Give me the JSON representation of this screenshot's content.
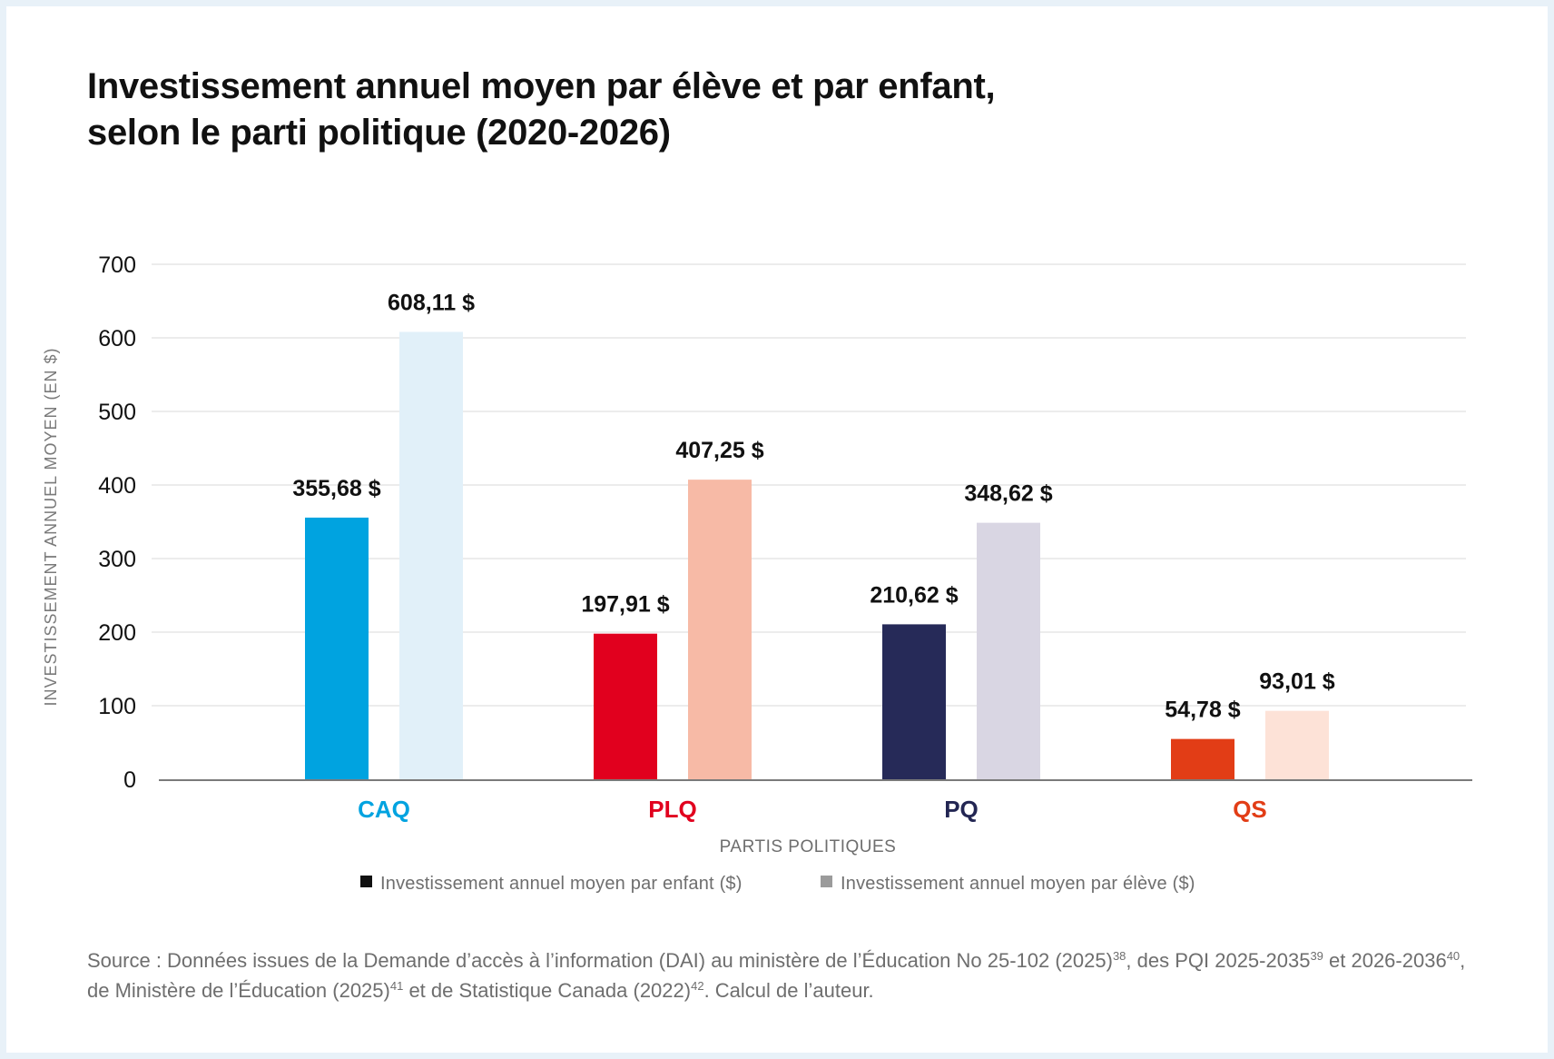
{
  "title_lines": [
    "Investissement annuel moyen par élève et par enfant,",
    "selon le parti politique (2020-2026)"
  ],
  "chart_data": {
    "type": "bar",
    "categories": [
      "CAQ",
      "PLQ",
      "PQ",
      "QS"
    ],
    "category_colors": [
      "#00a3e0",
      "#e1001e",
      "#232653",
      "#e23d16"
    ],
    "series": [
      {
        "name": "Investissement annuel moyen par enfant ($)",
        "values": [
          355.68,
          197.91,
          210.62,
          54.78
        ],
        "labels": [
          "355,68 $",
          "197,91 $",
          "210,62 $",
          "54,78 $"
        ],
        "colors": [
          "#00a3e0",
          "#e1001e",
          "#262a58",
          "#e23d16"
        ],
        "legend_color": "#111111"
      },
      {
        "name": "Investissement annuel moyen par élève ($)",
        "values": [
          608.11,
          407.25,
          348.62,
          93.01
        ],
        "labels": [
          "608,11 $",
          "407,25 $",
          "348,62 $",
          "93,01 $"
        ],
        "colors": [
          "#e1f0f9",
          "#f7baa6",
          "#d9d6e3",
          "#fde2d7"
        ],
        "legend_color": "#9b9b9b"
      }
    ],
    "xlabel": "PARTIS POLITIQUES",
    "ylabel": "INVESTISSEMENT ANNUEL MOYEN (EN $)",
    "ylim": [
      0,
      700
    ],
    "yticks": [
      "0",
      "100",
      "200",
      "300",
      "400",
      "500",
      "600",
      "700"
    ],
    "grid": true,
    "legend_position": "bottom"
  },
  "source": {
    "parts": [
      {
        "t": "Source : Données issues de la Demande d’accès à l’information (DAI) au ministère de l’Éducation No 25-102 (2025)"
      },
      {
        "s": "38"
      },
      {
        "t": ", des PQI 2025-2035"
      },
      {
        "s": "39"
      },
      {
        "t": " et 2026-2036"
      },
      {
        "s": "40"
      },
      {
        "t": ", de Ministère de l’Éducation (2025)"
      },
      {
        "s": "41"
      },
      {
        "t": " et de Statistique Canada (2022)"
      },
      {
        "s": "42"
      },
      {
        "t": ". Calcul de l’auteur."
      }
    ]
  }
}
